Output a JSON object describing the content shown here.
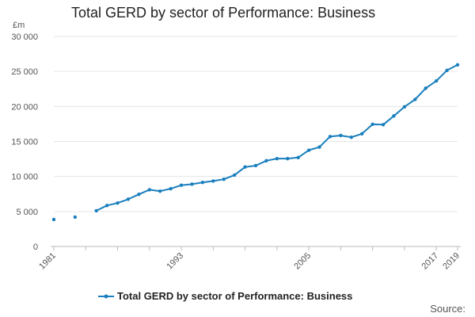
{
  "chart_data": {
    "type": "line",
    "title": "Total GERD by sector of Performance: Business",
    "unit": "£m",
    "xlabel": "",
    "ylabel": "",
    "ylim": [
      0,
      30000
    ],
    "xlim": [
      1981,
      2019
    ],
    "yticks": [
      0,
      5000,
      10000,
      15000,
      20000,
      25000,
      30000
    ],
    "ytick_labels": [
      "0",
      "5 000",
      "10 000",
      "15 000",
      "20 000",
      "25 000",
      "30 000"
    ],
    "xtick_labels": [
      "1981",
      "1993",
      "2005",
      "2017",
      "2019"
    ],
    "xticks": [
      1981,
      1993,
      2005,
      2017,
      2019
    ],
    "grid": true,
    "legend_position": "bottom",
    "color": "#1a7fbe",
    "series": [
      {
        "name": "Total GERD by sector of Performance: Business",
        "x": [
          1981,
          1983,
          1985,
          1986,
          1987,
          1988,
          1989,
          1990,
          1991,
          1992,
          1993,
          1994,
          1995,
          1996,
          1997,
          1998,
          1999,
          2000,
          2001,
          2002,
          2003,
          2004,
          2005,
          2006,
          2007,
          2008,
          2009,
          2010,
          2011,
          2012,
          2013,
          2014,
          2015,
          2016,
          2017,
          2018,
          2019
        ],
        "values": [
          3850,
          4200,
          5100,
          5850,
          6200,
          6750,
          7450,
          8100,
          7900,
          8250,
          8750,
          8900,
          9150,
          9350,
          9600,
          10200,
          11350,
          11550,
          12250,
          12550,
          12550,
          12700,
          13750,
          14200,
          15700,
          15850,
          15600,
          16100,
          17450,
          17400,
          18650,
          19950,
          21000,
          22600,
          23650,
          25150,
          25950
        ]
      }
    ]
  },
  "source_label": "Source:"
}
